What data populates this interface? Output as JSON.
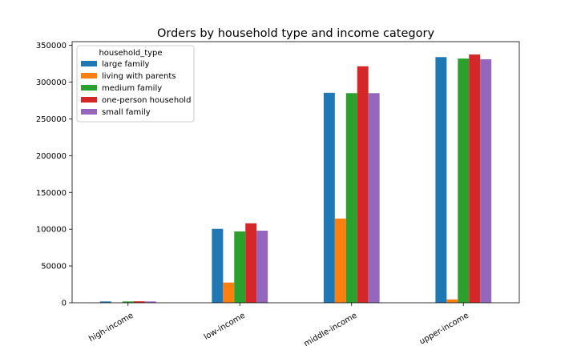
{
  "chart_data": {
    "type": "bar",
    "title": "Orders by household type and income category",
    "xlabel": "",
    "ylabel": "",
    "categories": [
      "high-income",
      "low-income",
      "middle-income",
      "upper-income"
    ],
    "series": [
      {
        "name": "large family",
        "color": "#1f77b4",
        "values": [
          1800,
          100500,
          285500,
          334000
        ]
      },
      {
        "name": "living with parents",
        "color": "#ff7f0e",
        "values": [
          300,
          27500,
          114500,
          4500
        ]
      },
      {
        "name": "medium family",
        "color": "#2ca02c",
        "values": [
          1800,
          97000,
          285000,
          332000
        ]
      },
      {
        "name": "one-person household",
        "color": "#d62728",
        "values": [
          2000,
          108000,
          321500,
          337500
        ]
      },
      {
        "name": "small family",
        "color": "#9467bd",
        "values": [
          1800,
          98000,
          285000,
          331000
        ]
      }
    ],
    "ylim": [
      0,
      355000
    ],
    "yticks": [
      "0",
      "50000",
      "100000",
      "150000",
      "200000",
      "250000",
      "300000",
      "350000"
    ],
    "ytick_values": [
      0,
      50000,
      100000,
      150000,
      200000,
      250000,
      300000,
      350000
    ],
    "xtick_rotation": -30,
    "legend": {
      "title": "household_type",
      "placement": "top-left"
    },
    "grid": false
  }
}
